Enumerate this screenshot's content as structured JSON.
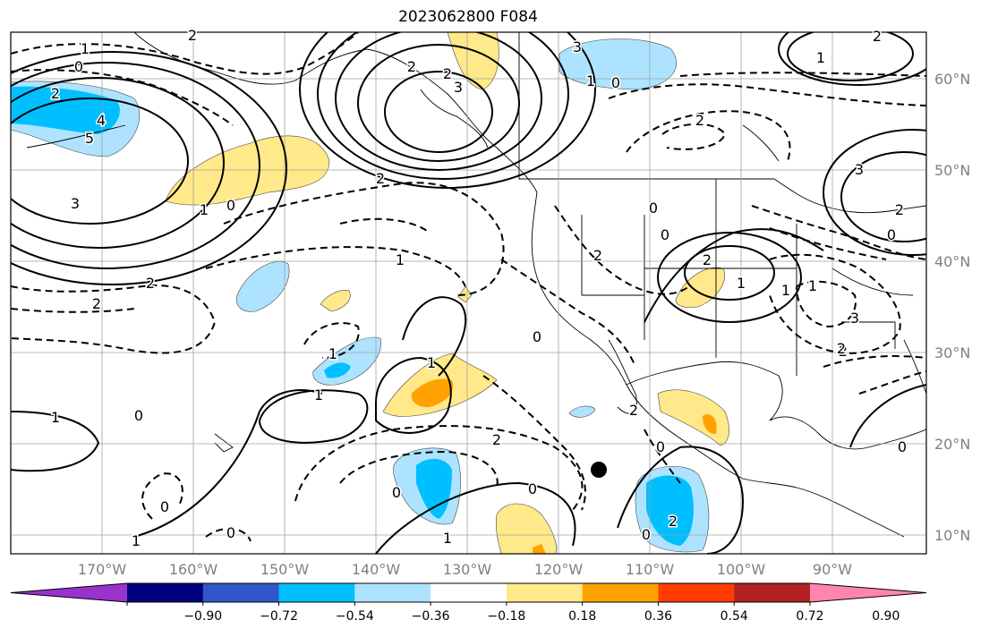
{
  "title": "2023062800 F084",
  "map": {
    "lat_ticks": [
      "60°N",
      "50°N",
      "40°N",
      "30°N",
      "20°N",
      "10°N"
    ],
    "lon_ticks": [
      "170°W",
      "160°W",
      "150°W",
      "140°W",
      "130°W",
      "120°W",
      "110°W",
      "100°W",
      "90°W"
    ],
    "contour_labels": [
      "1",
      "2",
      "0",
      "3",
      "2",
      "2",
      "3",
      "1",
      "0",
      "2",
      "4",
      "5",
      "3",
      "1",
      "0",
      "2",
      "2",
      "1",
      "0",
      "2",
      "2",
      "1",
      "1",
      "1",
      "0",
      "1",
      "0",
      "2",
      "2",
      "3",
      "2",
      "1",
      "1",
      "1",
      "0",
      "2",
      "2",
      "0",
      "0",
      "2",
      "0",
      "1",
      "1",
      "0",
      "0",
      "0",
      "1",
      "2",
      "2",
      "0",
      "3",
      "2",
      "0"
    ]
  },
  "colorbar": {
    "labels": [
      "−0.90",
      "−0.72",
      "−0.54",
      "−0.36",
      "−0.18",
      "0.18",
      "0.36",
      "0.54",
      "0.72",
      "0.90"
    ],
    "colors": [
      "#9933cc",
      "#000080",
      "#3355cc",
      "#00bfff",
      "#aee3ff",
      "#ffffff",
      "#ffe98a",
      "#ffa200",
      "#ff3d00",
      "#b22222",
      "#ff85b0"
    ]
  }
}
